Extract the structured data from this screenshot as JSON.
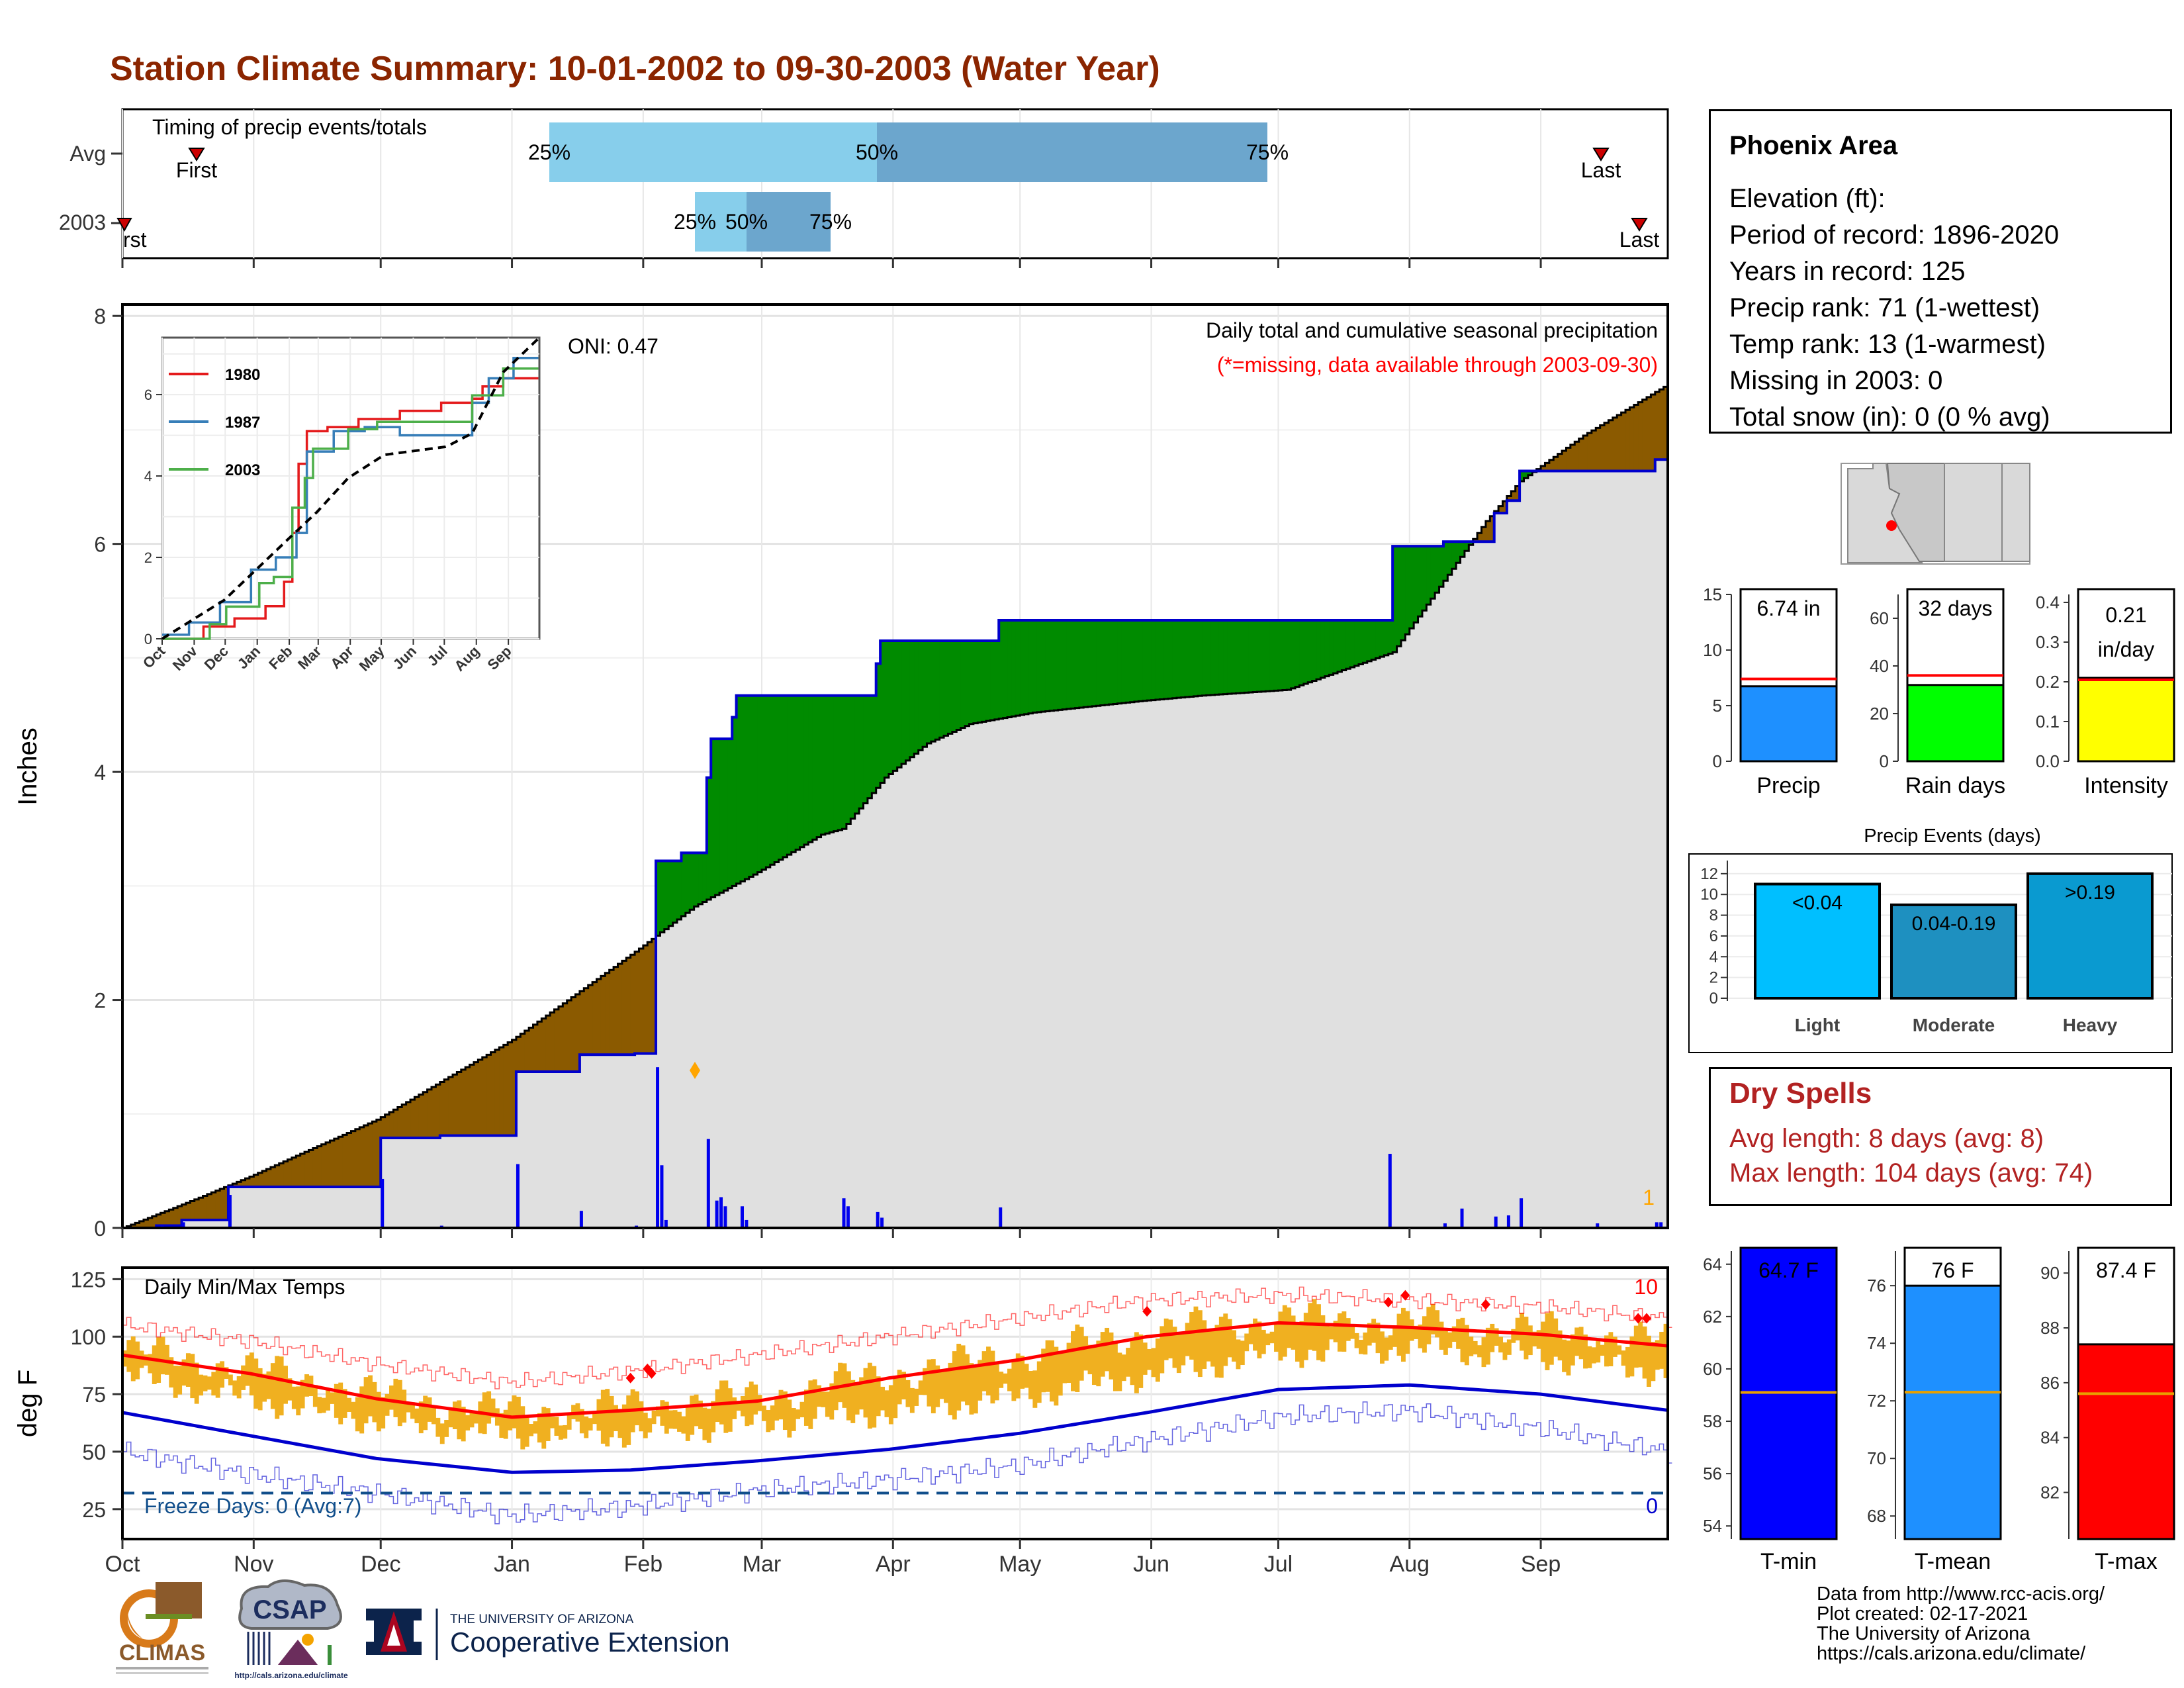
{
  "title": "Station Climate Summary: 10-01-2002 to 09-30-2003 (Water Year)",
  "colors": {
    "title": "#8b2500",
    "quartile_light": "#87ceeb",
    "quartile_dark": "#6ca6cd",
    "above_normal": "#008b00",
    "below_normal": "#8b5a00",
    "normal_area": "#e0e0e0",
    "observed_line": "#0000cd",
    "tmax_avg": "#ff0000",
    "tmin_avg": "#0000cd",
    "daily_range": "#f0b020",
    "precip_gauge": "#1e90ff",
    "raindays_gauge": "#00ff00",
    "intensity_gauge": "#ffff00",
    "event_light": "#00bfff",
    "event_moderate": "#009acd",
    "event_heavy": "#0a9ad0",
    "tmin_gauge": "#0000ff",
    "tmean_gauge": "#1e90ff",
    "tmax_gauge": "#ff0000"
  },
  "timing": {
    "label": "Timing of precip events/totals",
    "row_labels": [
      "Avg",
      "2003"
    ],
    "first_label": "First",
    "last_label": "Last",
    "first_label_2003": "rst",
    "last_label_2003": "Last",
    "q25": "25%",
    "q50": "50%",
    "q75": "75%"
  },
  "info": {
    "station": "Phoenix Area",
    "elevation": "Elevation (ft):",
    "period": "Period of record: 1896-2020",
    "years": "Years in record: 125",
    "precip_rank": "Precip rank: 71 (1-wettest)",
    "temp_rank": "Temp rank: 13 (1-warmest)",
    "missing": "Missing in 2003: 0",
    "snow": "Total snow (in): 0 (0 % avg)"
  },
  "gauges": {
    "precip": {
      "label": "Precip",
      "value": 6.74,
      "text": "6.74 in",
      "avg": 7.4,
      "ticks": [
        "0",
        "5",
        "10",
        "15"
      ],
      "max": 15
    },
    "raindays": {
      "label": "Rain days",
      "value": 32,
      "text": "32 days",
      "avg": 36,
      "ticks": [
        "0",
        "20",
        "40",
        "60"
      ],
      "max": 70
    },
    "intensity": {
      "label": "Intensity",
      "value": 0.21,
      "text1": "0.21",
      "text2": "in/day",
      "avg": 0.205,
      "ticks": [
        "0.0",
        "0.1",
        "0.2",
        "0.3",
        "0.4"
      ],
      "max": 0.42
    }
  },
  "events": {
    "title": "Precip Events (days)",
    "ticks": [
      "0",
      "2",
      "4",
      "6",
      "8",
      "10",
      "12"
    ],
    "bars": [
      {
        "label": "Light",
        "text": "<0.04",
        "value": 11
      },
      {
        "label": "Moderate",
        "text": "0.04-0.19",
        "value": 9
      },
      {
        "label": "Heavy",
        "text": ">0.19",
        "value": 12
      }
    ]
  },
  "dry_spells": {
    "title": "Dry Spells",
    "avg": "Avg length: 8 days (avg: 8)",
    "max": "Max length: 104 days (avg: 74)"
  },
  "temp_gauges": {
    "tmin": {
      "label": "T-min",
      "text": "64.7 F",
      "value": 64.7,
      "avg": 59.1,
      "ticks": [
        "54",
        "56",
        "58",
        "60",
        "62",
        "64"
      ]
    },
    "tmean": {
      "label": "T-mean",
      "text": "76 F",
      "value": 76,
      "avg": 72.3,
      "ticks": [
        "68",
        "70",
        "72",
        "74",
        "76"
      ]
    },
    "tmax": {
      "label": "T-max",
      "text": "87.4 F",
      "value": 87.4,
      "avg": 85.6,
      "ticks": [
        "82",
        "84",
        "86",
        "88",
        "90"
      ]
    }
  },
  "precip_chart": {
    "ylabel": "Inches",
    "yticks": [
      "0",
      "2",
      "4",
      "6",
      "8"
    ],
    "oni": "ONI: 0.47",
    "subtitle": "Daily total and cumulative seasonal precipitation",
    "missing_note": "(*=missing, data available through 2003-09-30)",
    "corner_count": "1"
  },
  "inset": {
    "yticks": [
      "0",
      "2",
      "4",
      "6"
    ],
    "xticks": [
      "Oct",
      "Nov",
      "Dec",
      "Jan",
      "Feb",
      "Mar",
      "Apr",
      "May",
      "Jun",
      "Jul",
      "Aug",
      "Sep"
    ],
    "legend": [
      "1980",
      "1987",
      "2003"
    ],
    "legend_colors": [
      "#e41a1c",
      "#377eb8",
      "#4daf4a"
    ]
  },
  "temp_chart": {
    "ylabel": "deg F",
    "label": "Daily Min/Max Temps",
    "yticks": [
      "25",
      "50",
      "75",
      "100",
      "125"
    ],
    "freeze": "Freeze Days: 0 (Avg:7)",
    "max_count": "10",
    "min_count": "0"
  },
  "months": [
    "Oct",
    "Nov",
    "Dec",
    "Jan",
    "Feb",
    "Mar",
    "Apr",
    "May",
    "Jun",
    "Jul",
    "Aug",
    "Sep"
  ],
  "logos": {
    "climas": "CLIMAS",
    "csap": "CSAP",
    "csap_url": "http://cals.arizona.edu/climate",
    "ua_small": "THE UNIVERSITY OF ARIZONA",
    "ua_big": "Cooperative Extension"
  },
  "footer": {
    "l1": "Data from http://www.rcc-acis.org/",
    "l2": "Plot created: 02-17-2021",
    "l3": "The University of Arizona",
    "l4": "https://cals.arizona.edu/climate/"
  },
  "chart_data": [
    {
      "type": "area",
      "title": "Daily total and cumulative seasonal precipitation",
      "xlabel": "",
      "ylabel": "Inches",
      "ylim": [
        0,
        8
      ],
      "x_unit": "day of water year",
      "series": [
        {
          "name": "normal cumulative",
          "x": [
            0,
            15,
            30,
            45,
            60,
            75,
            92,
            107,
            122,
            135,
            150,
            165,
            170,
            180,
            190,
            200,
            215,
            240,
            255,
            275,
            300,
            322,
            330,
            345,
            365
          ],
          "values": [
            0,
            0.22,
            0.45,
            0.7,
            0.95,
            1.28,
            1.65,
            2.05,
            2.45,
            2.82,
            3.12,
            3.45,
            3.5,
            3.95,
            4.25,
            4.42,
            4.52,
            4.62,
            4.67,
            4.72,
            5.05,
            6.2,
            6.55,
            6.95,
            7.4
          ]
        },
        {
          "name": "2003 cumulative",
          "x": [
            0,
            8,
            14,
            25,
            46,
            61,
            75,
            93,
            108,
            121,
            126,
            132,
            135,
            138,
            139,
            144,
            145,
            170,
            178,
            179,
            187,
            207,
            299,
            300,
            312,
            316,
            324,
            327,
            330,
            340,
            362,
            365
          ],
          "values": [
            0,
            0.02,
            0.07,
            0.36,
            0.36,
            0.79,
            0.81,
            1.37,
            1.52,
            1.53,
            3.22,
            3.29,
            3.29,
            3.95,
            4.29,
            4.48,
            4.67,
            4.67,
            4.95,
            5.15,
            5.15,
            5.33,
            5.33,
            5.98,
            6.02,
            6.02,
            6.27,
            6.38,
            6.64,
            6.64,
            6.74,
            6.74
          ]
        },
        {
          "name": "daily precip",
          "x": [
            9,
            14,
            25,
            61,
            75,
            93,
            108,
            121,
            126,
            127,
            128,
            138,
            140,
            141,
            142,
            146,
            147,
            170,
            171,
            178,
            179,
            187,
            207,
            299,
            300,
            312,
            316,
            324,
            327,
            330,
            348,
            362,
            363
          ],
          "values": [
            0.02,
            0.05,
            0.29,
            0.43,
            0.02,
            0.56,
            0.15,
            0.02,
            1.41,
            0.55,
            0.07,
            0.78,
            0.24,
            0.27,
            0.19,
            0.19,
            0.07,
            0.26,
            0.19,
            0.14,
            0.09,
            0.01,
            0.18,
            0.65,
            0.01,
            0.04,
            0.17,
            0.1,
            0.11,
            0.26,
            0.04,
            0.05,
            0.05
          ]
        }
      ]
    },
    {
      "type": "line",
      "title": "",
      "xlabel": "",
      "ylabel": "",
      "ylim": [
        0,
        7
      ],
      "series": [
        {
          "name": "1980",
          "x": [
            0,
            40,
            70,
            100,
            118,
            125,
            132,
            140,
            160,
            190,
            230,
            270,
            300,
            310,
            330,
            365
          ],
          "values": [
            0,
            0.3,
            0.5,
            0.8,
            1.4,
            2.6,
            4.3,
            5.1,
            5.2,
            5.4,
            5.6,
            5.8,
            5.9,
            6.2,
            6.4,
            6.5
          ]
        },
        {
          "name": "1987",
          "x": [
            0,
            25,
            55,
            85,
            110,
            130,
            140,
            165,
            195,
            230,
            270,
            290,
            300,
            315,
            340,
            365
          ],
          "values": [
            0.1,
            0.4,
            0.9,
            1.7,
            2.0,
            2.6,
            4.6,
            5.1,
            5.2,
            5.0,
            5.0,
            5.0,
            5.8,
            6.4,
            6.9,
            7.0
          ]
        },
        {
          "name": "2003",
          "x": [
            0,
            46,
            61,
            93,
            108,
            126,
            138,
            145,
            179,
            207,
            299,
            330,
            365
          ],
          "values": [
            0,
            0.36,
            0.79,
            1.37,
            1.52,
            3.22,
            3.95,
            4.67,
            5.15,
            5.33,
            5.98,
            6.64,
            6.74
          ]
        },
        {
          "name": "normal",
          "x": [
            0,
            60,
            122,
            150,
            180,
            215,
            275,
            300,
            330,
            365
          ],
          "values": [
            0,
            0.95,
            2.45,
            3.12,
            3.95,
            4.52,
            4.72,
            5.05,
            6.55,
            7.4
          ]
        }
      ]
    },
    {
      "type": "line",
      "title": "Daily Min/Max Temps",
      "xlabel": "",
      "ylabel": "deg F",
      "ylim": [
        12,
        130
      ],
      "series": [
        {
          "name": "avg max",
          "x": [
            0,
            30,
            60,
            92,
            120,
            150,
            181,
            212,
            242,
            273,
            304,
            335,
            365
          ],
          "values": [
            92,
            84,
            73,
            65,
            68,
            72,
            82,
            90,
            100,
            106,
            104,
            101,
            96
          ]
        },
        {
          "name": "avg min",
          "x": [
            0,
            30,
            60,
            92,
            120,
            150,
            181,
            212,
            242,
            273,
            304,
            335,
            365
          ],
          "values": [
            67,
            57,
            47,
            41,
            42,
            46,
            51,
            58,
            67,
            77,
            79,
            75,
            68
          ]
        },
        {
          "name": "record max",
          "x": [
            0,
            30,
            60,
            92,
            120,
            150,
            181,
            212,
            242,
            273,
            304,
            335,
            365
          ],
          "values": [
            105,
            98,
            88,
            80,
            85,
            92,
            100,
            108,
            116,
            118,
            116,
            113,
            108
          ]
        },
        {
          "name": "record min",
          "x": [
            0,
            30,
            60,
            92,
            120,
            150,
            181,
            212,
            242,
            273,
            304,
            335,
            365
          ],
          "values": [
            50,
            40,
            32,
            22,
            26,
            33,
            38,
            44,
            55,
            65,
            68,
            60,
            50
          ]
        },
        {
          "name": "freeze",
          "x": [
            0,
            365
          ],
          "values": [
            32,
            32
          ]
        }
      ]
    },
    {
      "type": "bar",
      "categories": [
        "Precip"
      ],
      "values": [
        6.74
      ],
      "ylim": [
        0,
        15
      ]
    },
    {
      "type": "bar",
      "categories": [
        "Rain days"
      ],
      "values": [
        32
      ],
      "ylim": [
        0,
        70
      ]
    },
    {
      "type": "bar",
      "categories": [
        "Intensity"
      ],
      "values": [
        0.21
      ],
      "ylim": [
        0,
        0.42
      ]
    },
    {
      "type": "bar",
      "title": "Precip Events (days)",
      "categories": [
        "Light",
        "Moderate",
        "Heavy"
      ],
      "values": [
        11,
        9,
        12
      ],
      "ylim": [
        0,
        12.5
      ]
    },
    {
      "type": "bar",
      "categories": [
        "T-min"
      ],
      "values": [
        64.7
      ],
      "ylim": [
        53.5,
        64.5
      ]
    },
    {
      "type": "bar",
      "categories": [
        "T-mean"
      ],
      "values": [
        76
      ],
      "ylim": [
        67.2,
        77.2
      ]
    },
    {
      "type": "bar",
      "categories": [
        "T-max"
      ],
      "values": [
        87.4
      ],
      "ylim": [
        80.3,
        90.8
      ]
    }
  ]
}
